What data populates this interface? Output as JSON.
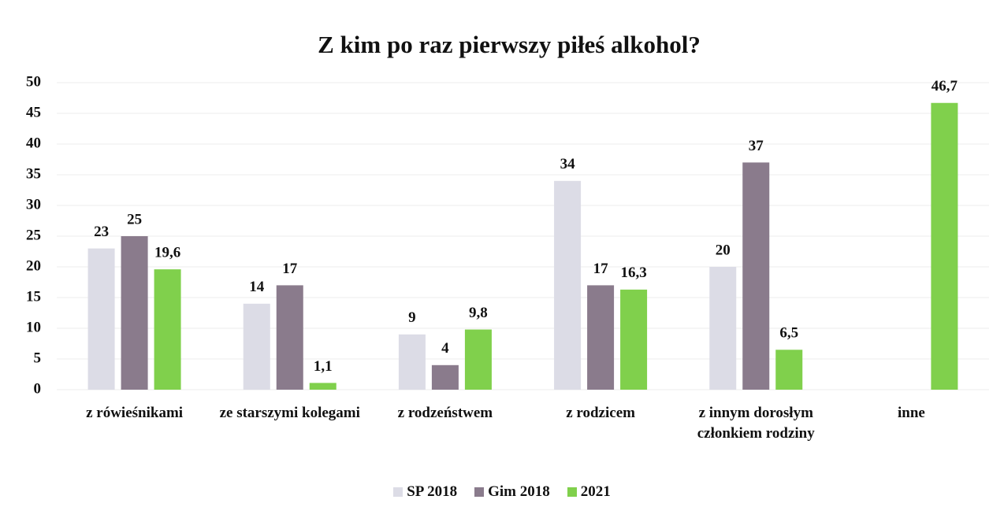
{
  "chart_data": {
    "type": "bar",
    "title": "Z kim po raz pierwszy piłeś alkohol?",
    "categories": [
      "z rówieśnikami",
      "ze starszymi kolegami",
      "z rodzeństwem",
      "z rodzicem",
      "z innym dorosłym członkiem rodziny",
      "inne"
    ],
    "series": [
      {
        "name": "SP 2018",
        "color": "#dcdce6",
        "values": [
          23,
          14,
          9,
          34,
          20,
          null
        ],
        "value_labels": [
          "23",
          "14",
          "9",
          "34",
          "20",
          null
        ]
      },
      {
        "name": "Gim 2018",
        "color": "#8a7b8c",
        "values": [
          25,
          17,
          4,
          17,
          37,
          null
        ],
        "value_labels": [
          "25",
          "17",
          "4",
          "17",
          "37",
          null
        ]
      },
      {
        "name": "2021",
        "color": "#80d04c",
        "values": [
          19.6,
          1.1,
          9.8,
          16.3,
          6.5,
          46.7
        ],
        "value_labels": [
          "19,6",
          "1,1",
          "9,8",
          "16,3",
          "6,5",
          "46,7"
        ]
      }
    ],
    "ylim": [
      0,
      50
    ],
    "yticks": [
      0,
      5,
      10,
      15,
      20,
      25,
      30,
      35,
      40,
      45,
      50
    ],
    "grid": true,
    "legend": "bottom"
  }
}
